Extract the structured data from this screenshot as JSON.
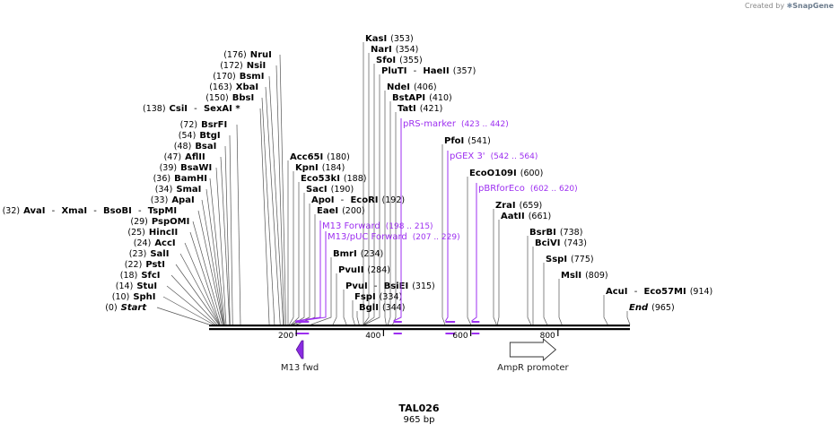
{
  "credit": {
    "prefix": "Created by",
    "brand": "SnapGene"
  },
  "plasmid": {
    "name": "TAL026",
    "length_label": "965 bp",
    "length": 965
  },
  "ruler_ticks": [
    "200",
    "400",
    "600",
    "800"
  ],
  "sites": [
    {
      "id": "start",
      "num": "(0)",
      "names": [
        "Start"
      ],
      "pos": 0,
      "italic": true
    },
    {
      "id": "sphi",
      "num": "(10)",
      "names": [
        "SphI"
      ],
      "pos": 10
    },
    {
      "id": "stui",
      "num": "(14)",
      "names": [
        "StuI"
      ],
      "pos": 14
    },
    {
      "id": "sfci",
      "num": "(18)",
      "names": [
        "SfcI"
      ],
      "pos": 18
    },
    {
      "id": "psti",
      "num": "(22)",
      "names": [
        "PstI"
      ],
      "pos": 22
    },
    {
      "id": "sali",
      "num": "(23)",
      "names": [
        "SalI"
      ],
      "pos": 23
    },
    {
      "id": "acci",
      "num": "(24)",
      "names": [
        "AccI"
      ],
      "pos": 24
    },
    {
      "id": "hincii",
      "num": "(25)",
      "names": [
        "HincII"
      ],
      "pos": 25
    },
    {
      "id": "pspomi",
      "num": "(29)",
      "names": [
        "PspOMI"
      ],
      "pos": 29
    },
    {
      "id": "avai",
      "num": "(32)",
      "names": [
        "AvaI",
        "XmaI",
        "BsoBI",
        "TspMI"
      ],
      "pos": 32
    },
    {
      "id": "apai",
      "num": "(33)",
      "names": [
        "ApaI"
      ],
      "pos": 33
    },
    {
      "id": "smai",
      "num": "(34)",
      "names": [
        "SmaI"
      ],
      "pos": 34
    },
    {
      "id": "bamhi",
      "num": "(36)",
      "names": [
        "BamHI"
      ],
      "pos": 36
    },
    {
      "id": "bsawi",
      "num": "(39)",
      "names": [
        "BsaWI"
      ],
      "pos": 39
    },
    {
      "id": "aflii",
      "num": "(47)",
      "names": [
        "AflII"
      ],
      "pos": 47
    },
    {
      "id": "bsai",
      "num": "(48)",
      "names": [
        "BsaI"
      ],
      "pos": 48
    },
    {
      "id": "btgi",
      "num": "(54)",
      "names": [
        "BtgI"
      ],
      "pos": 54
    },
    {
      "id": "bsrfi",
      "num": "(72)",
      "names": [
        "BsrFI"
      ],
      "pos": 72
    },
    {
      "id": "csii",
      "num": "(138)",
      "names": [
        "CsiI",
        "SexAI *"
      ],
      "pos": 138
    },
    {
      "id": "bbsi",
      "num": "(150)",
      "names": [
        "BbsI"
      ],
      "pos": 150
    },
    {
      "id": "xbai",
      "num": "(163)",
      "names": [
        "XbaI"
      ],
      "pos": 163
    },
    {
      "id": "bsmi",
      "num": "(170)",
      "names": [
        "BsmI"
      ],
      "pos": 170
    },
    {
      "id": "nsii",
      "num": "(172)",
      "names": [
        "NsiI"
      ],
      "pos": 172
    },
    {
      "id": "nrui",
      "num": "(176)",
      "names": [
        "NruI"
      ],
      "pos": 176
    },
    {
      "id": "acc65i",
      "num": "(180)",
      "names": [
        "Acc65I"
      ],
      "pos": 180
    },
    {
      "id": "kpni",
      "num": "(184)",
      "names": [
        "KpnI"
      ],
      "pos": 184
    },
    {
      "id": "eco53ki",
      "num": "(188)",
      "names": [
        "Eco53kI"
      ],
      "pos": 188
    },
    {
      "id": "saci",
      "num": "(190)",
      "names": [
        "SacI"
      ],
      "pos": 190
    },
    {
      "id": "apoi",
      "num": "(192)",
      "names": [
        "ApoI",
        "EcoRI"
      ],
      "pos": 192
    },
    {
      "id": "eaei",
      "num": "(200)",
      "names": [
        "EaeI"
      ],
      "pos": 200
    },
    {
      "id": "bmri",
      "num": "(234)",
      "names": [
        "BmrI"
      ],
      "pos": 234
    },
    {
      "id": "pvuii",
      "num": "(284)",
      "names": [
        "PvuII"
      ],
      "pos": 284
    },
    {
      "id": "pvui",
      "num": "(315)",
      "names": [
        "PvuI",
        "BsiEI"
      ],
      "pos": 315
    },
    {
      "id": "fspi",
      "num": "(334)",
      "names": [
        "FspI"
      ],
      "pos": 334
    },
    {
      "id": "bgli",
      "num": "(344)",
      "names": [
        "BglI"
      ],
      "pos": 344
    },
    {
      "id": "kasi",
      "num": "(353)",
      "names": [
        "KasI"
      ],
      "pos": 353
    },
    {
      "id": "nari",
      "num": "(354)",
      "names": [
        "NarI"
      ],
      "pos": 354
    },
    {
      "id": "sfoi",
      "num": "(355)",
      "names": [
        "SfoI"
      ],
      "pos": 355
    },
    {
      "id": "pluti",
      "num": "(357)",
      "names": [
        "PluTI",
        "HaeII"
      ],
      "pos": 357
    },
    {
      "id": "ndei",
      "num": "(406)",
      "names": [
        "NdeI"
      ],
      "pos": 406
    },
    {
      "id": "bstapi",
      "num": "(410)",
      "names": [
        "BstAPI"
      ],
      "pos": 410
    },
    {
      "id": "tati",
      "num": "(421)",
      "names": [
        "TatI"
      ],
      "pos": 421
    },
    {
      "id": "pfoi",
      "num": "(541)",
      "names": [
        "PfoI"
      ],
      "pos": 541
    },
    {
      "id": "ecoo109i",
      "num": "(600)",
      "names": [
        "EcoO109I"
      ],
      "pos": 600
    },
    {
      "id": "zrai",
      "num": "(659)",
      "names": [
        "ZraI"
      ],
      "pos": 659
    },
    {
      "id": "aatii",
      "num": "(661)",
      "names": [
        "AatII"
      ],
      "pos": 661
    },
    {
      "id": "bsrbi",
      "num": "(738)",
      "names": [
        "BsrBI"
      ],
      "pos": 738
    },
    {
      "id": "bcivi",
      "num": "(743)",
      "names": [
        "BciVI"
      ],
      "pos": 743
    },
    {
      "id": "sspi",
      "num": "(775)",
      "names": [
        "SspI"
      ],
      "pos": 775
    },
    {
      "id": "msli",
      "num": "(809)",
      "names": [
        "MslI"
      ],
      "pos": 809
    },
    {
      "id": "acui",
      "num": "(914)",
      "names": [
        "AcuI",
        "Eco57MI"
      ],
      "pos": 914
    },
    {
      "id": "end",
      "num": "(965)",
      "names": [
        "End"
      ],
      "pos": 965,
      "italic": true
    }
  ],
  "primers": [
    {
      "id": "prs-marker",
      "name": "pRS-marker",
      "range": "(423 .. 442)",
      "start": 423,
      "end": 442
    },
    {
      "id": "pgex3",
      "name": "pGEX 3'",
      "range": "(542 .. 564)",
      "start": 542,
      "end": 564
    },
    {
      "id": "pbrforeco",
      "name": "pBRforEco",
      "range": "(602 .. 620)",
      "start": 602,
      "end": 620
    },
    {
      "id": "m13-forward",
      "name": "M13 Forward",
      "range": "(198 .. 215)",
      "start": 198,
      "end": 215
    },
    {
      "id": "m13-puc-forward",
      "name": "M13/pUC Forward",
      "range": "(207 .. 229)",
      "start": 207,
      "end": 229
    }
  ],
  "features": [
    {
      "id": "m13-fwd",
      "name": "M13 fwd",
      "direction": "reverse",
      "start": 200,
      "end": 216
    },
    {
      "id": "ampr-promoter",
      "name": "AmpR promoter",
      "direction": "forward",
      "start": 690,
      "end": 795
    }
  ],
  "colors": {
    "primer": "#9d2ff0",
    "m13_fill": "#8a2be2",
    "line": "#555555"
  }
}
